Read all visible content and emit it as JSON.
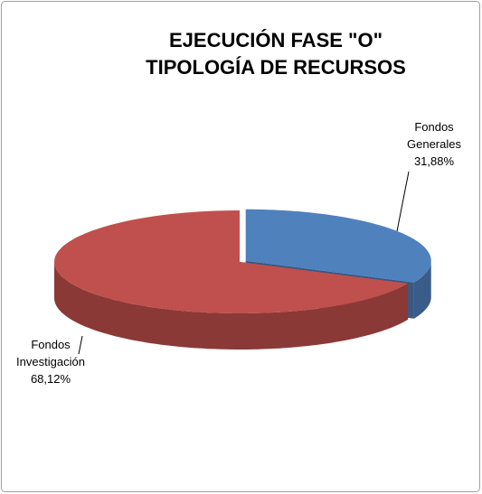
{
  "chart_data": {
    "type": "pie",
    "title": [
      "EJECUCIÓN FASE \"O\"",
      "TIPOLOGÍA DE RECURSOS"
    ],
    "categories": [
      "Fondos Generales",
      "Fondos Investigación"
    ],
    "values": [
      31.88,
      68.12
    ],
    "value_labels": [
      "31,88%",
      "68,12%"
    ],
    "colors": [
      "#4f81bd",
      "#c0504d"
    ]
  }
}
